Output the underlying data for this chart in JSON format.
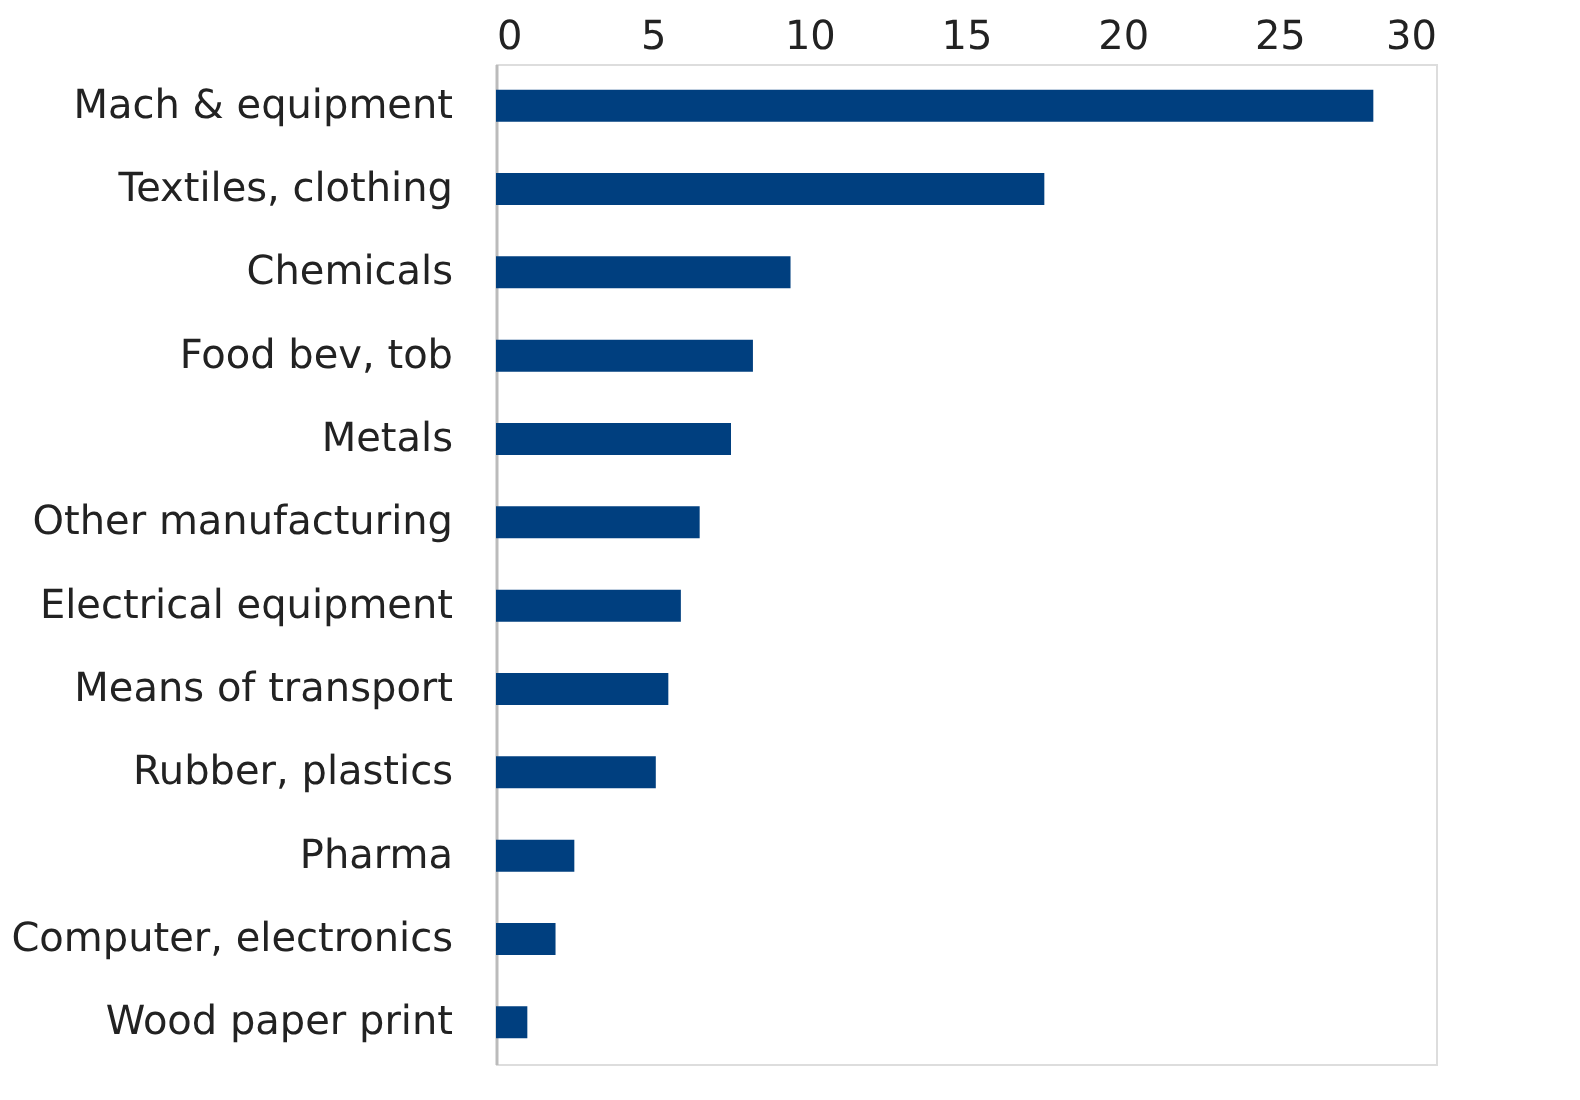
{
  "chart_data": {
    "type": "bar",
    "orientation": "horizontal",
    "categories": [
      "Mach & equipment",
      "Textiles, clothing",
      "Chemicals",
      "Food bev, tob",
      "Metals",
      "Other manufacturing",
      "Electrical equipment",
      "Means of transport",
      "Rubber, plastics",
      "Pharma",
      "Computer, electronics",
      "Wood paper print"
    ],
    "values": [
      28.0,
      17.5,
      9.4,
      8.2,
      7.5,
      6.5,
      5.9,
      5.5,
      5.1,
      2.5,
      1.9,
      1.0
    ],
    "color": "#003f7f",
    "xlim": [
      0,
      30
    ],
    "xticks": [
      0,
      5,
      10,
      15,
      20,
      25,
      30
    ],
    "grid": false
  }
}
